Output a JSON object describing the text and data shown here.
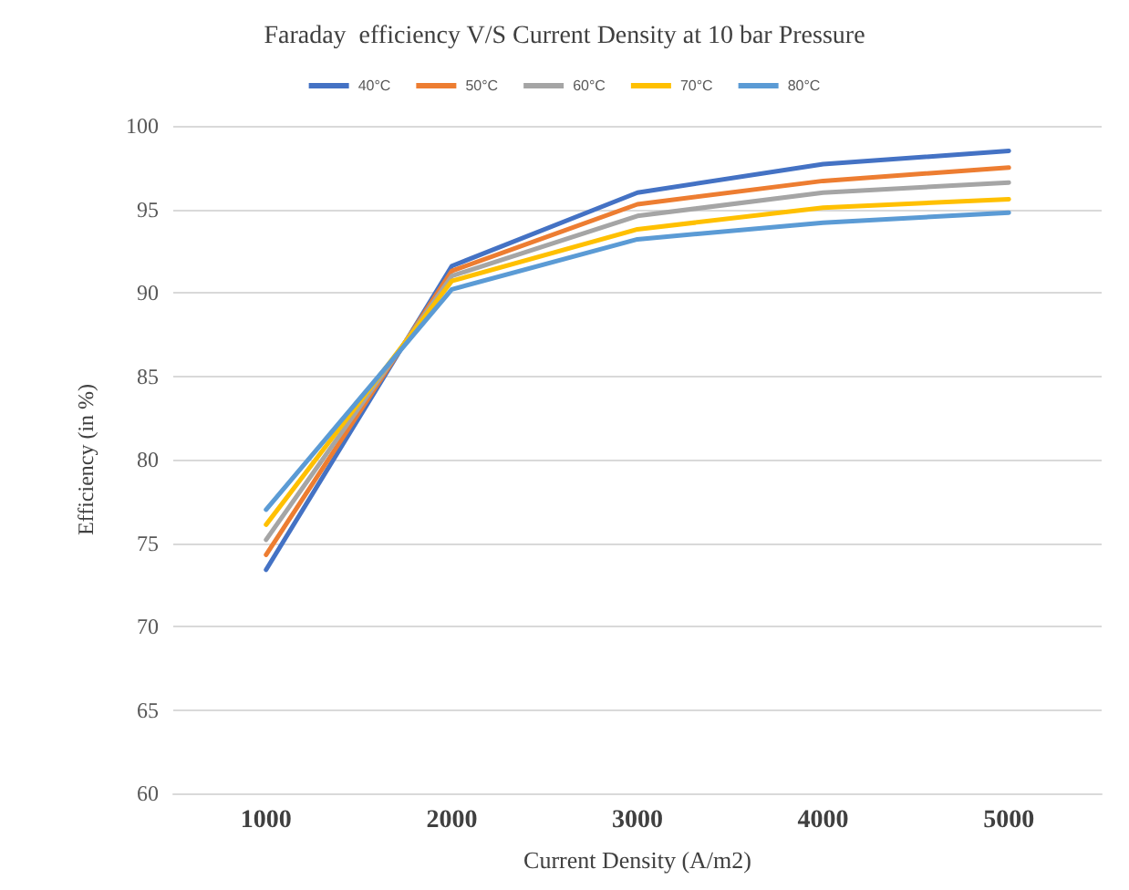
{
  "chart_data": {
    "type": "line",
    "title": "Faraday  efficiency V/S Current Density at 10 bar Pressure",
    "xlabel": "Current Density (A/m2)",
    "ylabel": "Efficiency (in %)",
    "categories": [
      "1000",
      "2000",
      "3000",
      "4000",
      "5000"
    ],
    "series": [
      {
        "name": "40°C",
        "color": "#4472c4",
        "values": [
          73.4,
          91.6,
          96.0,
          97.7,
          98.5
        ]
      },
      {
        "name": "50°C",
        "color": "#ed7d31",
        "values": [
          74.3,
          91.3,
          95.3,
          96.7,
          97.5
        ]
      },
      {
        "name": "60°C",
        "color": "#a5a5a5",
        "values": [
          75.2,
          91.0,
          94.6,
          96.0,
          96.6
        ]
      },
      {
        "name": "70°C",
        "color": "#ffc000",
        "values": [
          76.1,
          90.7,
          93.8,
          95.1,
          95.6
        ]
      },
      {
        "name": "80°C",
        "color": "#5b9bd5",
        "values": [
          77.0,
          90.2,
          93.2,
          94.2,
          94.8
        ]
      }
    ],
    "ylim": [
      60,
      100
    ],
    "yticks": [
      60,
      65,
      70,
      75,
      80,
      85,
      90,
      95,
      100
    ],
    "grid": "y",
    "legend": "top",
    "marker": "none",
    "line_style": "solid"
  }
}
